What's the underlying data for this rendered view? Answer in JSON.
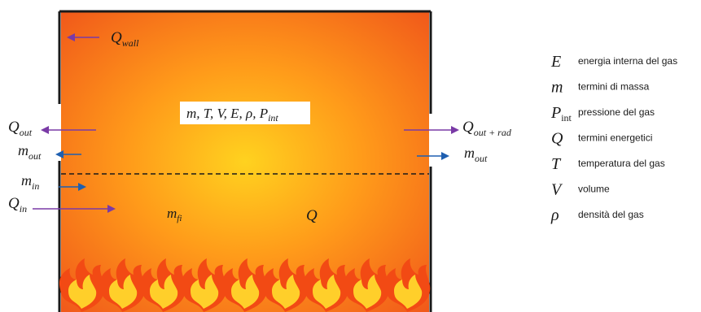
{
  "diagram": {
    "colors": {
      "chamber_core": "#ffd21f",
      "chamber_mid": "#ff9a1a",
      "chamber_edge": "#f0561a",
      "wall": "#1a1a1a",
      "arrow_purple": "#7a3aa6",
      "arrow_blue": "#1f5fb0",
      "flame_outer": "#f24a14",
      "flame_inner": "#ffcf2a"
    },
    "labels": {
      "q_wall": {
        "sym": "Q",
        "sub": "wall"
      },
      "q_out_left": {
        "sym": "Q",
        "sub": "out"
      },
      "m_out_left": {
        "sym": "m",
        "sub": "out"
      },
      "m_in": {
        "sym": "m",
        "sub": "in"
      },
      "q_in": {
        "sym": "Q",
        "sub": "in"
      },
      "q_out_rad": {
        "sym": "Q",
        "sub": "out + rad"
      },
      "m_out_right": {
        "sym": "m",
        "sub": "out"
      },
      "m_fi": {
        "sym": "m",
        "sub": "fi"
      },
      "q_center": {
        "sym": "Q"
      },
      "state_box": {
        "text": "m, T, V, E, ρ, P",
        "sub": "int"
      }
    },
    "icons": [
      "flame-icon"
    ]
  },
  "legend": [
    {
      "sym": "E",
      "sub": "",
      "desc": "energia interna del gas"
    },
    {
      "sym": "m",
      "sub": "",
      "desc": "termini di massa"
    },
    {
      "sym": "P",
      "sub": "int",
      "desc": "pressione del gas"
    },
    {
      "sym": "Q",
      "sub": "",
      "desc": "termini energetici"
    },
    {
      "sym": "T",
      "sub": "",
      "desc": "temperatura del gas"
    },
    {
      "sym": "V",
      "sub": "",
      "desc": "volume"
    },
    {
      "sym": "ρ",
      "sub": "",
      "desc": "densità del gas"
    }
  ]
}
